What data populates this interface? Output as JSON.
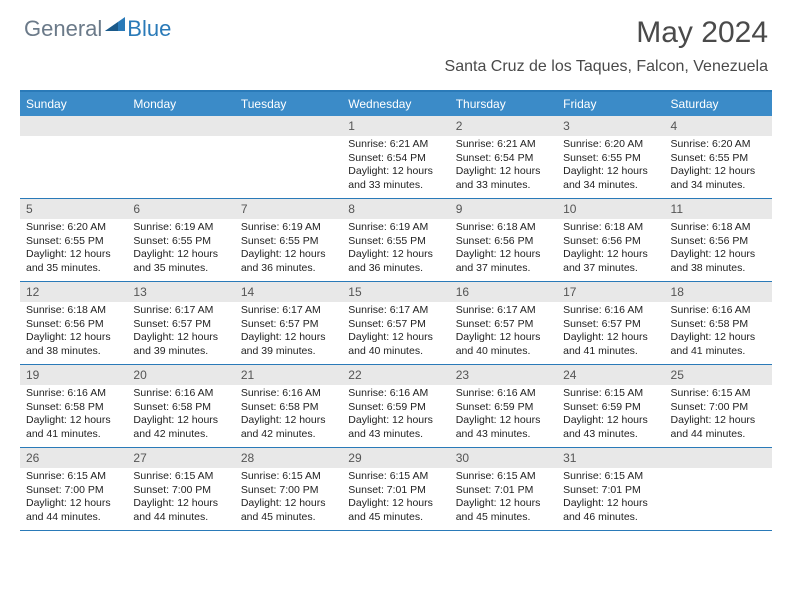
{
  "logo": {
    "text1": "General",
    "text2": "Blue",
    "text1_color": "#6b7a89",
    "text2_color": "#2a7ab8"
  },
  "title": "May 2024",
  "location": "Santa Cruz de los Taques, Falcon, Venezuela",
  "colors": {
    "header_bg": "#3b8bc8",
    "border": "#2a7ab8",
    "daynum_bg": "#e8e8e8",
    "text": "#222222"
  },
  "weekdays": [
    "Sunday",
    "Monday",
    "Tuesday",
    "Wednesday",
    "Thursday",
    "Friday",
    "Saturday"
  ],
  "weeks": [
    [
      {
        "n": "",
        "lines": []
      },
      {
        "n": "",
        "lines": []
      },
      {
        "n": "",
        "lines": []
      },
      {
        "n": "1",
        "lines": [
          "Sunrise: 6:21 AM",
          "Sunset: 6:54 PM",
          "Daylight: 12 hours",
          "and 33 minutes."
        ]
      },
      {
        "n": "2",
        "lines": [
          "Sunrise: 6:21 AM",
          "Sunset: 6:54 PM",
          "Daylight: 12 hours",
          "and 33 minutes."
        ]
      },
      {
        "n": "3",
        "lines": [
          "Sunrise: 6:20 AM",
          "Sunset: 6:55 PM",
          "Daylight: 12 hours",
          "and 34 minutes."
        ]
      },
      {
        "n": "4",
        "lines": [
          "Sunrise: 6:20 AM",
          "Sunset: 6:55 PM",
          "Daylight: 12 hours",
          "and 34 minutes."
        ]
      }
    ],
    [
      {
        "n": "5",
        "lines": [
          "Sunrise: 6:20 AM",
          "Sunset: 6:55 PM",
          "Daylight: 12 hours",
          "and 35 minutes."
        ]
      },
      {
        "n": "6",
        "lines": [
          "Sunrise: 6:19 AM",
          "Sunset: 6:55 PM",
          "Daylight: 12 hours",
          "and 35 minutes."
        ]
      },
      {
        "n": "7",
        "lines": [
          "Sunrise: 6:19 AM",
          "Sunset: 6:55 PM",
          "Daylight: 12 hours",
          "and 36 minutes."
        ]
      },
      {
        "n": "8",
        "lines": [
          "Sunrise: 6:19 AM",
          "Sunset: 6:55 PM",
          "Daylight: 12 hours",
          "and 36 minutes."
        ]
      },
      {
        "n": "9",
        "lines": [
          "Sunrise: 6:18 AM",
          "Sunset: 6:56 PM",
          "Daylight: 12 hours",
          "and 37 minutes."
        ]
      },
      {
        "n": "10",
        "lines": [
          "Sunrise: 6:18 AM",
          "Sunset: 6:56 PM",
          "Daylight: 12 hours",
          "and 37 minutes."
        ]
      },
      {
        "n": "11",
        "lines": [
          "Sunrise: 6:18 AM",
          "Sunset: 6:56 PM",
          "Daylight: 12 hours",
          "and 38 minutes."
        ]
      }
    ],
    [
      {
        "n": "12",
        "lines": [
          "Sunrise: 6:18 AM",
          "Sunset: 6:56 PM",
          "Daylight: 12 hours",
          "and 38 minutes."
        ]
      },
      {
        "n": "13",
        "lines": [
          "Sunrise: 6:17 AM",
          "Sunset: 6:57 PM",
          "Daylight: 12 hours",
          "and 39 minutes."
        ]
      },
      {
        "n": "14",
        "lines": [
          "Sunrise: 6:17 AM",
          "Sunset: 6:57 PM",
          "Daylight: 12 hours",
          "and 39 minutes."
        ]
      },
      {
        "n": "15",
        "lines": [
          "Sunrise: 6:17 AM",
          "Sunset: 6:57 PM",
          "Daylight: 12 hours",
          "and 40 minutes."
        ]
      },
      {
        "n": "16",
        "lines": [
          "Sunrise: 6:17 AM",
          "Sunset: 6:57 PM",
          "Daylight: 12 hours",
          "and 40 minutes."
        ]
      },
      {
        "n": "17",
        "lines": [
          "Sunrise: 6:16 AM",
          "Sunset: 6:57 PM",
          "Daylight: 12 hours",
          "and 41 minutes."
        ]
      },
      {
        "n": "18",
        "lines": [
          "Sunrise: 6:16 AM",
          "Sunset: 6:58 PM",
          "Daylight: 12 hours",
          "and 41 minutes."
        ]
      }
    ],
    [
      {
        "n": "19",
        "lines": [
          "Sunrise: 6:16 AM",
          "Sunset: 6:58 PM",
          "Daylight: 12 hours",
          "and 41 minutes."
        ]
      },
      {
        "n": "20",
        "lines": [
          "Sunrise: 6:16 AM",
          "Sunset: 6:58 PM",
          "Daylight: 12 hours",
          "and 42 minutes."
        ]
      },
      {
        "n": "21",
        "lines": [
          "Sunrise: 6:16 AM",
          "Sunset: 6:58 PM",
          "Daylight: 12 hours",
          "and 42 minutes."
        ]
      },
      {
        "n": "22",
        "lines": [
          "Sunrise: 6:16 AM",
          "Sunset: 6:59 PM",
          "Daylight: 12 hours",
          "and 43 minutes."
        ]
      },
      {
        "n": "23",
        "lines": [
          "Sunrise: 6:16 AM",
          "Sunset: 6:59 PM",
          "Daylight: 12 hours",
          "and 43 minutes."
        ]
      },
      {
        "n": "24",
        "lines": [
          "Sunrise: 6:15 AM",
          "Sunset: 6:59 PM",
          "Daylight: 12 hours",
          "and 43 minutes."
        ]
      },
      {
        "n": "25",
        "lines": [
          "Sunrise: 6:15 AM",
          "Sunset: 7:00 PM",
          "Daylight: 12 hours",
          "and 44 minutes."
        ]
      }
    ],
    [
      {
        "n": "26",
        "lines": [
          "Sunrise: 6:15 AM",
          "Sunset: 7:00 PM",
          "Daylight: 12 hours",
          "and 44 minutes."
        ]
      },
      {
        "n": "27",
        "lines": [
          "Sunrise: 6:15 AM",
          "Sunset: 7:00 PM",
          "Daylight: 12 hours",
          "and 44 minutes."
        ]
      },
      {
        "n": "28",
        "lines": [
          "Sunrise: 6:15 AM",
          "Sunset: 7:00 PM",
          "Daylight: 12 hours",
          "and 45 minutes."
        ]
      },
      {
        "n": "29",
        "lines": [
          "Sunrise: 6:15 AM",
          "Sunset: 7:01 PM",
          "Daylight: 12 hours",
          "and 45 minutes."
        ]
      },
      {
        "n": "30",
        "lines": [
          "Sunrise: 6:15 AM",
          "Sunset: 7:01 PM",
          "Daylight: 12 hours",
          "and 45 minutes."
        ]
      },
      {
        "n": "31",
        "lines": [
          "Sunrise: 6:15 AM",
          "Sunset: 7:01 PM",
          "Daylight: 12 hours",
          "and 46 minutes."
        ]
      },
      {
        "n": "",
        "lines": []
      }
    ]
  ]
}
